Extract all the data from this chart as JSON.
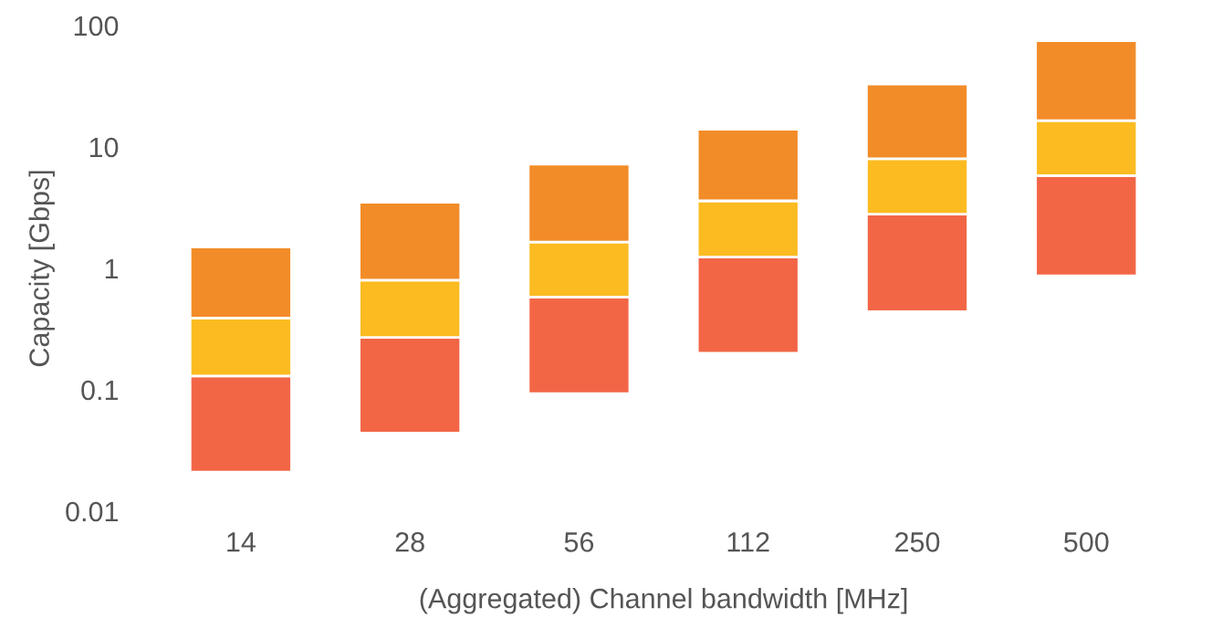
{
  "chart_data": {
    "type": "bar",
    "log": true,
    "xlabel": "(Aggregated) Channel bandwidth [MHz]",
    "ylabel": "Capacity [Gbps]",
    "categories": [
      "14",
      "28",
      "56",
      "112",
      "250",
      "500"
    ],
    "series": [
      {
        "color": "#f26646",
        "base": [
          0.021,
          0.044,
          0.093,
          0.2,
          0.44,
          0.87
        ],
        "values": [
          0.109,
          0.226,
          0.487,
          1.04,
          2.36,
          4.93
        ]
      },
      {
        "color": "#fbbb21",
        "base": [
          0.13,
          0.27,
          0.58,
          1.24,
          2.8,
          5.8
        ],
        "values": [
          0.26,
          0.53,
          1.07,
          2.36,
          5.2,
          10.7
        ]
      },
      {
        "color": "#f28c28",
        "base": [
          0.39,
          0.8,
          1.65,
          3.6,
          8,
          16.5
        ],
        "values": [
          1.11,
          2.7,
          5.55,
          10.4,
          25,
          58.5
        ]
      }
    ],
    "ylim": [
      0.01,
      100
    ],
    "yticks": [
      0.01,
      0.1,
      1,
      10,
      100
    ],
    "legend": false
  }
}
